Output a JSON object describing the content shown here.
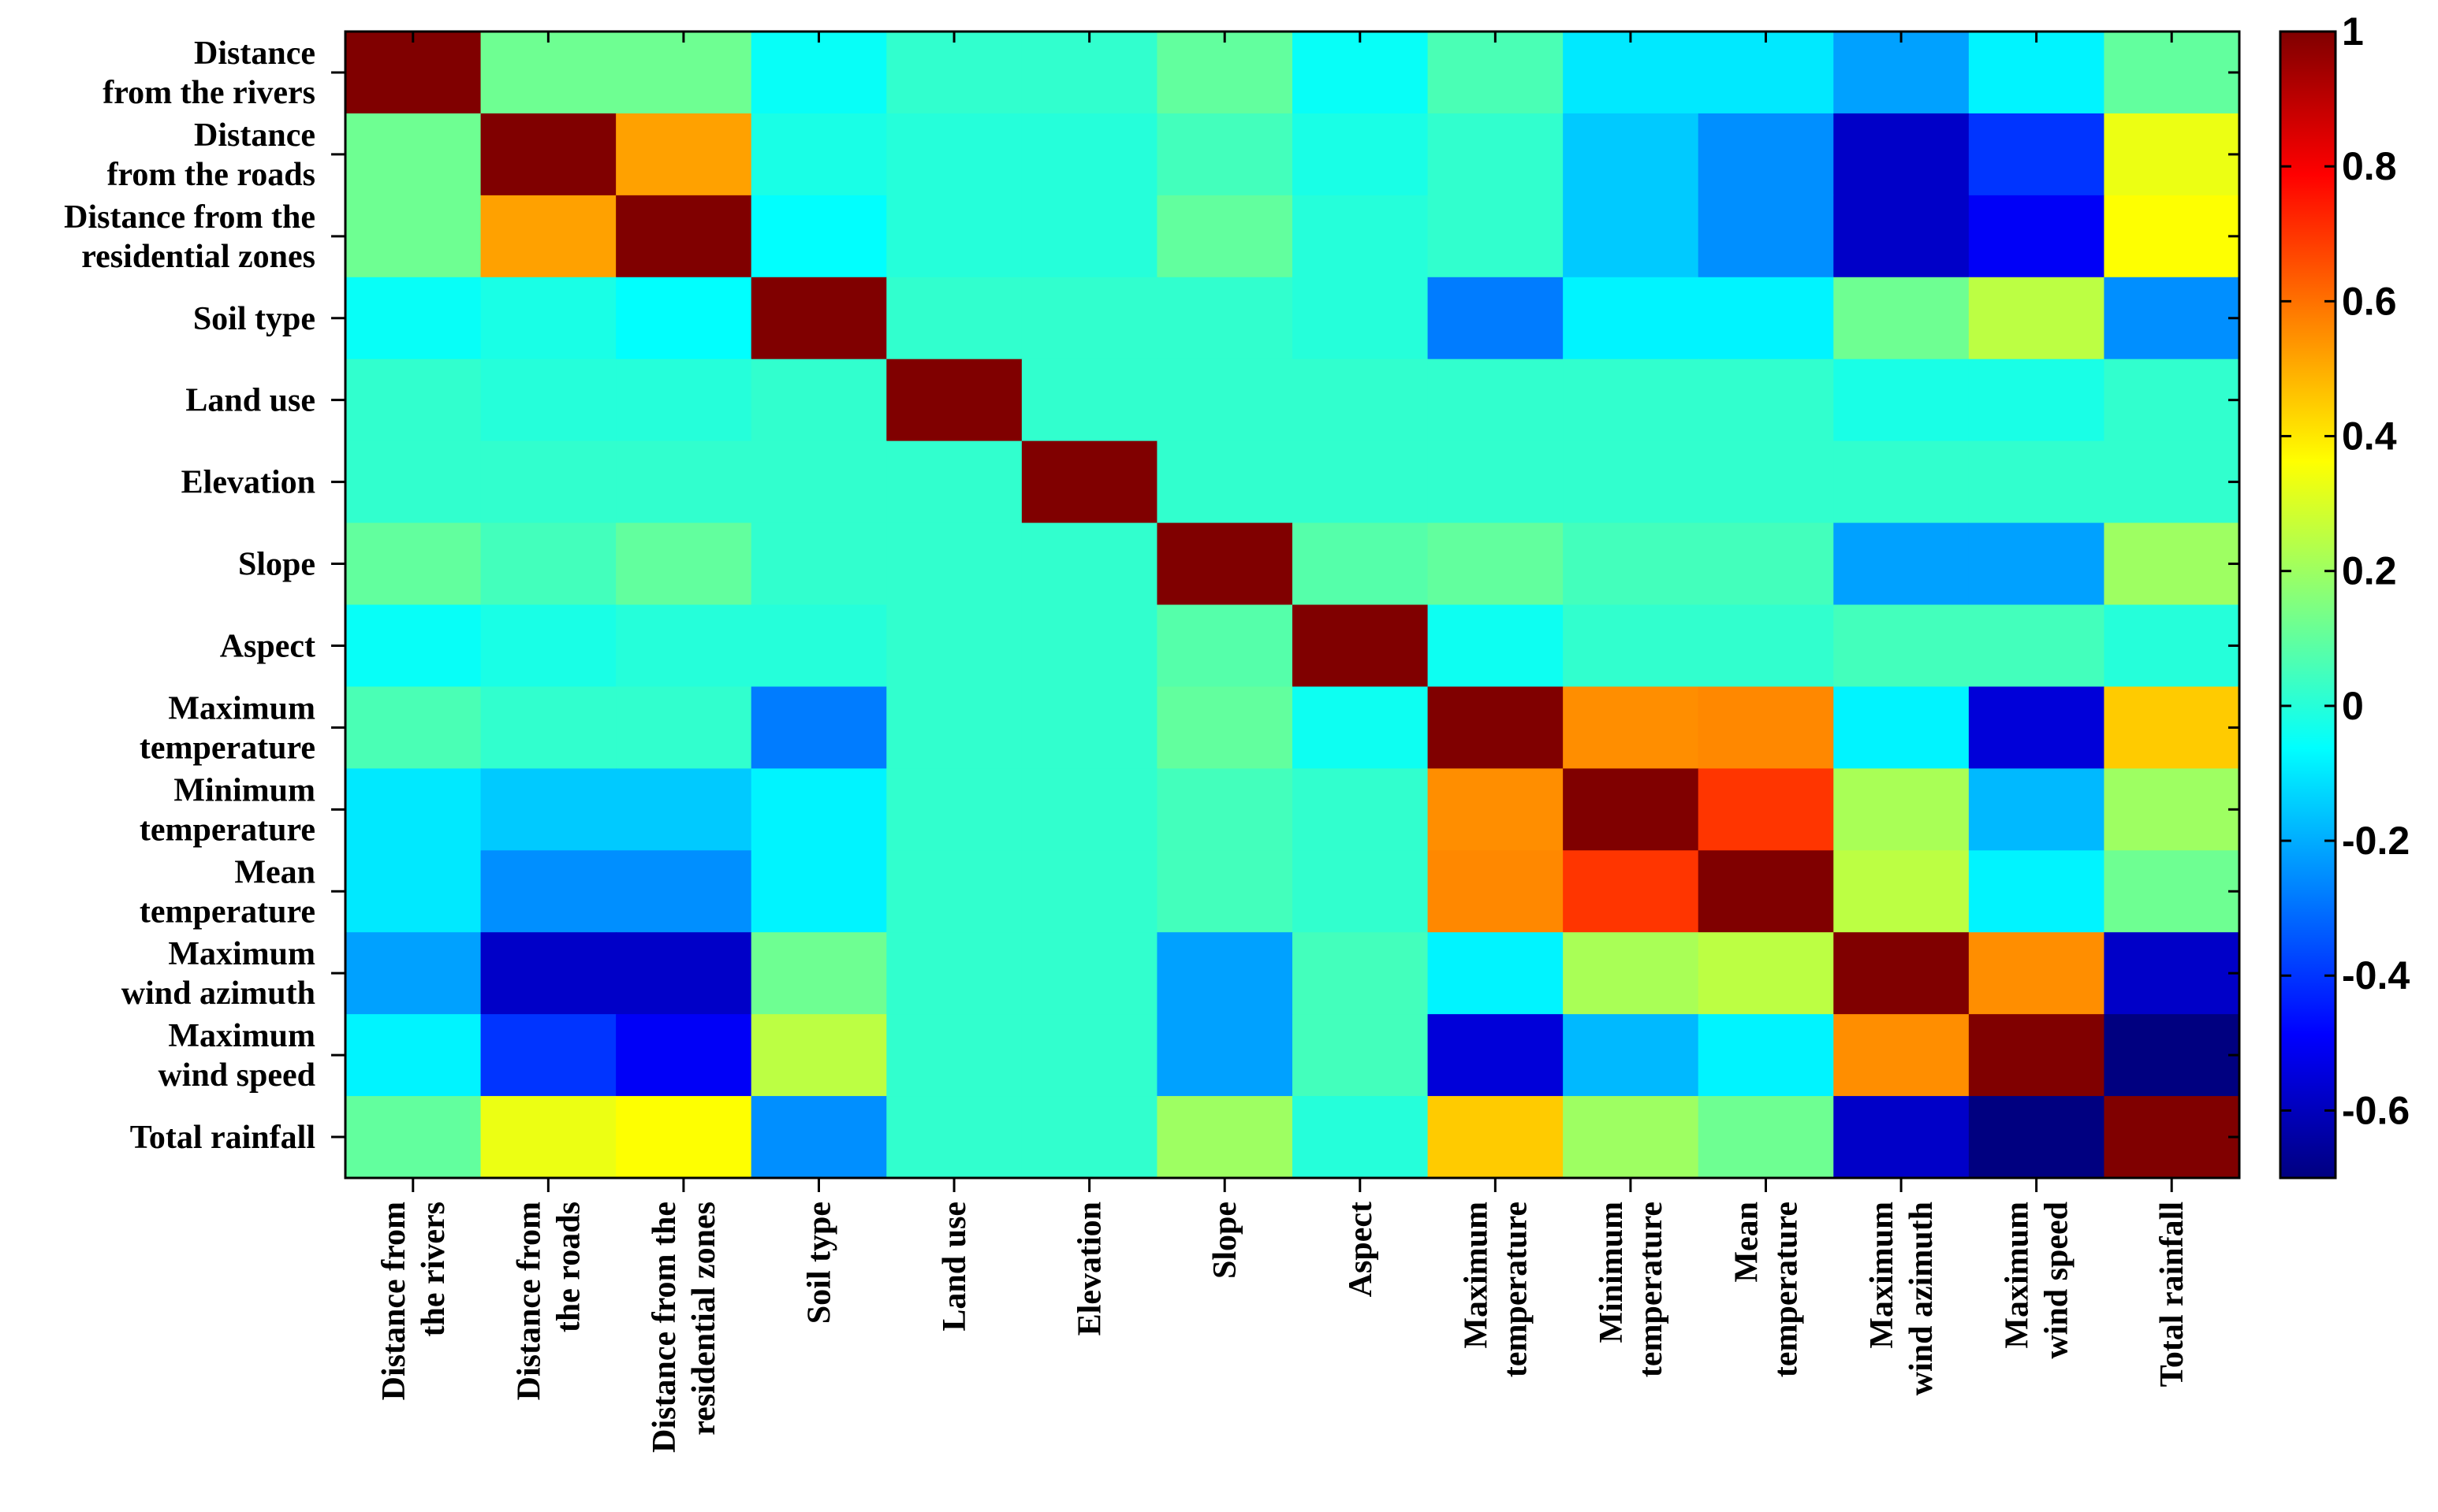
{
  "chart_data": {
    "type": "heatmap",
    "title": "",
    "row_labels": [
      [
        "Distance",
        "from the rivers"
      ],
      [
        "Distance",
        "from the roads"
      ],
      [
        "Distance from the",
        "residential zones"
      ],
      [
        "Soil type"
      ],
      [
        "Land use"
      ],
      [
        "Elevation"
      ],
      [
        "Slope"
      ],
      [
        "Aspect"
      ],
      [
        "Maximum",
        "temperature"
      ],
      [
        "Minimum",
        "temperature"
      ],
      [
        "Mean",
        "temperature"
      ],
      [
        "Maximum",
        "wind azimuth"
      ],
      [
        "Maximum",
        "wind speed"
      ],
      [
        "Total rainfall"
      ]
    ],
    "column_labels": [
      [
        "Distance from",
        "the rivers"
      ],
      [
        "Distance from",
        "the roads"
      ],
      [
        "Distance from the",
        "residential zones"
      ],
      [
        "Soil type"
      ],
      [
        "Land use"
      ],
      [
        "Elevation"
      ],
      [
        "Slope"
      ],
      [
        "Aspect"
      ],
      [
        "Maximum",
        "temperature"
      ],
      [
        "Minimum",
        "temperature"
      ],
      [
        "Mean",
        "temperature"
      ],
      [
        "Maximum",
        "wind azimuth"
      ],
      [
        "Maximum",
        "wind speed"
      ],
      [
        "Total rainfall"
      ]
    ],
    "values": [
      [
        1.0,
        0.12,
        0.12,
        -0.05,
        0.02,
        0.02,
        0.1,
        -0.05,
        0.06,
        -0.1,
        -0.1,
        -0.22,
        -0.08,
        0.1
      ],
      [
        0.12,
        1.0,
        0.52,
        -0.02,
        0.0,
        0.0,
        0.05,
        -0.02,
        0.02,
        -0.15,
        -0.25,
        -0.58,
        -0.4,
        0.33
      ],
      [
        0.12,
        0.52,
        1.0,
        -0.06,
        0.0,
        0.0,
        0.1,
        0.0,
        0.02,
        -0.15,
        -0.25,
        -0.58,
        -0.5,
        0.36
      ],
      [
        -0.05,
        -0.02,
        -0.06,
        1.0,
        0.02,
        0.02,
        0.02,
        0.0,
        -0.28,
        -0.08,
        -0.08,
        0.12,
        0.25,
        -0.25
      ],
      [
        0.02,
        0.0,
        0.0,
        0.02,
        1.0,
        0.02,
        0.02,
        0.02,
        0.02,
        0.02,
        0.02,
        -0.02,
        -0.02,
        0.02
      ],
      [
        0.02,
        0.02,
        0.02,
        0.02,
        0.02,
        1.0,
        0.02,
        0.02,
        0.02,
        0.02,
        0.02,
        0.02,
        0.02,
        0.02
      ],
      [
        0.1,
        0.05,
        0.1,
        0.02,
        0.02,
        0.02,
        1.0,
        0.08,
        0.1,
        0.05,
        0.05,
        -0.22,
        -0.22,
        0.2
      ],
      [
        -0.05,
        -0.02,
        0.0,
        0.0,
        0.02,
        0.02,
        0.08,
        1.0,
        -0.04,
        0.02,
        0.02,
        0.05,
        0.05,
        0.0
      ],
      [
        0.06,
        0.02,
        0.02,
        -0.28,
        0.02,
        0.02,
        0.1,
        -0.04,
        1.0,
        0.55,
        0.56,
        -0.08,
        -0.55,
        0.45
      ],
      [
        -0.1,
        -0.15,
        -0.15,
        -0.08,
        0.02,
        0.02,
        0.05,
        0.02,
        0.55,
        1.0,
        0.7,
        0.22,
        -0.18,
        0.2
      ],
      [
        -0.1,
        -0.25,
        -0.25,
        -0.08,
        0.02,
        0.02,
        0.05,
        0.02,
        0.56,
        0.7,
        1.0,
        0.25,
        -0.08,
        0.12
      ],
      [
        -0.22,
        -0.58,
        -0.58,
        0.12,
        0.02,
        0.02,
        -0.22,
        0.05,
        -0.08,
        0.22,
        0.25,
        1.0,
        0.55,
        -0.58
      ],
      [
        -0.08,
        -0.4,
        -0.5,
        0.25,
        0.02,
        0.02,
        -0.22,
        0.05,
        -0.55,
        -0.18,
        -0.08,
        0.55,
        1.0,
        -0.7
      ],
      [
        0.1,
        0.33,
        0.36,
        -0.25,
        0.02,
        0.02,
        0.2,
        0.0,
        0.45,
        0.2,
        0.12,
        -0.58,
        -0.7,
        1.0
      ]
    ],
    "colorbar": {
      "colormap": "jet",
      "vmin": -0.7,
      "vmax": 1.0,
      "ticks": [
        1,
        0.8,
        0.6,
        0.4,
        0.2,
        0,
        -0.2,
        -0.4,
        -0.6
      ],
      "tick_labels": [
        "1",
        "0.8",
        "0.6",
        "0.4",
        "0.2",
        "0",
        "-0.2",
        "-0.4",
        "-0.6"
      ]
    }
  }
}
